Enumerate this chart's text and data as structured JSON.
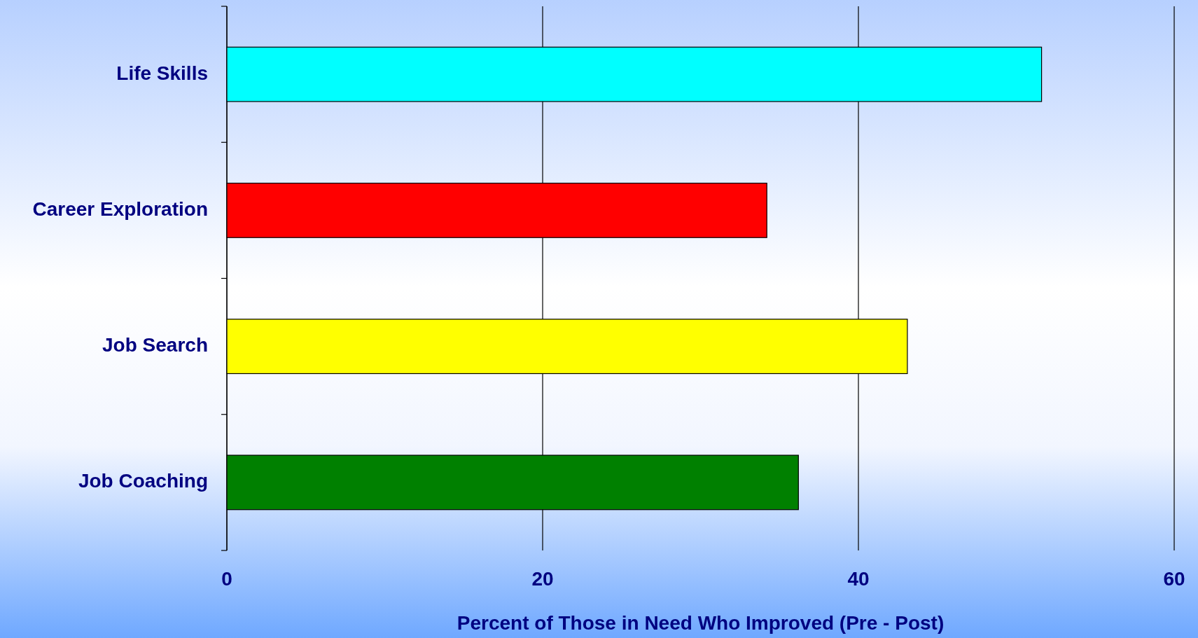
{
  "chart_data": {
    "type": "bar",
    "orientation": "horizontal",
    "categories": [
      "Life Skills",
      "Career Exploration",
      "Job Search",
      "Job Coaching"
    ],
    "values": [
      51.6,
      34.2,
      43.1,
      36.2
    ],
    "colors": [
      "#00ffff",
      "#ff0000",
      "#ffff00",
      "#008000"
    ],
    "xlim": [
      0,
      60
    ],
    "xticks": [
      0,
      20,
      40,
      60
    ],
    "grid": "x",
    "xlabel": "Percent of Those in Need Who Improved (Pre - Post)"
  }
}
